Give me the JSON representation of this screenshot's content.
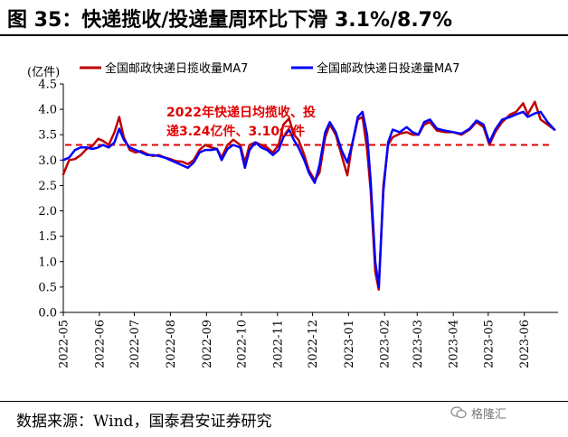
{
  "title": "图 35：快递揽收/投递量周环比下滑 3.1%/8.7%",
  "source": "数据来源：Wind，国泰君安证券研究",
  "watermark": "格隆汇",
  "colors": {
    "series_red": "#c00000",
    "series_blue": "#0000ff",
    "annotation": "#e00000",
    "dashed": "#e00000"
  },
  "chart_data": {
    "type": "line",
    "ylabel": "(亿件)",
    "ylim": [
      0.0,
      4.5
    ],
    "yticks": [
      "0.0",
      "0.5",
      "1.0",
      "1.5",
      "2.0",
      "2.5",
      "3.0",
      "3.5",
      "4.0",
      "4.5"
    ],
    "xtick_labels": [
      "2022-05",
      "2022-06",
      "2022-07",
      "2022-08",
      "2022-09",
      "2022-10",
      "2022-11",
      "2022-12",
      "2023-01",
      "2023-02",
      "2023-03",
      "2023-04",
      "2023-05",
      "2023-06"
    ],
    "x_range": [
      "2022-05-01",
      "2023-06-30"
    ],
    "reference_line": {
      "y": 3.3,
      "style": "dashed"
    },
    "annotation": {
      "line1": "2022年快递日均揽收、投",
      "line2": "递3.24亿件、3.10亿件"
    },
    "legend": [
      "全国邮政快递日揽收量MA7",
      "全国邮政快递日投递量MA7"
    ],
    "series": [
      {
        "name": "全国邮政快递日揽收量MA7",
        "color": "#c00000",
        "points": [
          [
            "2022-05-01",
            2.72
          ],
          [
            "2022-05-06",
            3.0
          ],
          [
            "2022-05-11",
            3.02
          ],
          [
            "2022-05-16",
            3.1
          ],
          [
            "2022-05-21",
            3.22
          ],
          [
            "2022-05-26",
            3.28
          ],
          [
            "2022-05-31",
            3.42
          ],
          [
            "2022-06-04",
            3.38
          ],
          [
            "2022-06-09",
            3.3
          ],
          [
            "2022-06-14",
            3.55
          ],
          [
            "2022-06-18",
            3.85
          ],
          [
            "2022-06-22",
            3.45
          ],
          [
            "2022-06-27",
            3.2
          ],
          [
            "2022-07-02",
            3.15
          ],
          [
            "2022-07-07",
            3.18
          ],
          [
            "2022-07-12",
            3.12
          ],
          [
            "2022-07-17",
            3.08
          ],
          [
            "2022-07-22",
            3.1
          ],
          [
            "2022-07-27",
            3.05
          ],
          [
            "2022-08-01",
            3.02
          ],
          [
            "2022-08-06",
            2.98
          ],
          [
            "2022-08-11",
            2.97
          ],
          [
            "2022-08-16",
            2.92
          ],
          [
            "2022-08-21",
            3.0
          ],
          [
            "2022-08-26",
            3.2
          ],
          [
            "2022-08-31",
            3.3
          ],
          [
            "2022-09-05",
            3.25
          ],
          [
            "2022-09-10",
            3.22
          ],
          [
            "2022-09-14",
            3.05
          ],
          [
            "2022-09-19",
            3.3
          ],
          [
            "2022-09-24",
            3.4
          ],
          [
            "2022-09-30",
            3.3
          ],
          [
            "2022-10-04",
            2.95
          ],
          [
            "2022-10-08",
            3.3
          ],
          [
            "2022-10-13",
            3.35
          ],
          [
            "2022-10-18",
            3.3
          ],
          [
            "2022-10-23",
            3.25
          ],
          [
            "2022-10-28",
            3.15
          ],
          [
            "2022-11-02",
            3.3
          ],
          [
            "2022-11-06",
            3.7
          ],
          [
            "2022-11-11",
            3.82
          ],
          [
            "2022-11-15",
            3.5
          ],
          [
            "2022-11-19",
            3.4
          ],
          [
            "2022-11-24",
            3.1
          ],
          [
            "2022-11-28",
            2.8
          ],
          [
            "2022-12-03",
            2.6
          ],
          [
            "2022-12-07",
            2.75
          ],
          [
            "2022-12-12",
            3.45
          ],
          [
            "2022-12-16",
            3.7
          ],
          [
            "2022-12-21",
            3.5
          ],
          [
            "2022-12-26",
            3.1
          ],
          [
            "2022-12-31",
            2.7
          ],
          [
            "2023-01-04",
            3.3
          ],
          [
            "2023-01-09",
            3.8
          ],
          [
            "2023-01-13",
            3.85
          ],
          [
            "2023-01-17",
            3.2
          ],
          [
            "2023-01-20",
            2.4
          ],
          [
            "2023-01-24",
            0.8
          ],
          [
            "2023-01-27",
            0.45
          ],
          [
            "2023-01-31",
            2.5
          ],
          [
            "2023-02-04",
            3.3
          ],
          [
            "2023-02-08",
            3.45
          ],
          [
            "2023-02-14",
            3.52
          ],
          [
            "2023-02-20",
            3.55
          ],
          [
            "2023-02-25",
            3.5
          ],
          [
            "2023-03-02",
            3.5
          ],
          [
            "2023-03-07",
            3.7
          ],
          [
            "2023-03-12",
            3.75
          ],
          [
            "2023-03-18",
            3.58
          ],
          [
            "2023-03-25",
            3.55
          ],
          [
            "2023-04-01",
            3.55
          ],
          [
            "2023-04-08",
            3.5
          ],
          [
            "2023-04-15",
            3.6
          ],
          [
            "2023-04-21",
            3.75
          ],
          [
            "2023-04-27",
            3.65
          ],
          [
            "2023-05-02",
            3.3
          ],
          [
            "2023-05-07",
            3.55
          ],
          [
            "2023-05-13",
            3.75
          ],
          [
            "2023-05-20",
            3.9
          ],
          [
            "2023-05-25",
            3.95
          ],
          [
            "2023-05-31",
            4.12
          ],
          [
            "2023-06-04",
            3.9
          ],
          [
            "2023-06-10",
            4.15
          ],
          [
            "2023-06-15",
            3.8
          ],
          [
            "2023-06-21",
            3.7
          ],
          [
            "2023-06-27",
            3.6
          ]
        ]
      },
      {
        "name": "全国邮政快递日投递量MA7",
        "color": "#0000ff",
        "points": [
          [
            "2022-05-01",
            3.0
          ],
          [
            "2022-05-06",
            3.05
          ],
          [
            "2022-05-11",
            3.2
          ],
          [
            "2022-05-16",
            3.25
          ],
          [
            "2022-05-21",
            3.25
          ],
          [
            "2022-05-26",
            3.22
          ],
          [
            "2022-05-31",
            3.25
          ],
          [
            "2022-06-04",
            3.3
          ],
          [
            "2022-06-09",
            3.25
          ],
          [
            "2022-06-14",
            3.35
          ],
          [
            "2022-06-18",
            3.62
          ],
          [
            "2022-06-22",
            3.4
          ],
          [
            "2022-06-27",
            3.25
          ],
          [
            "2022-07-02",
            3.2
          ],
          [
            "2022-07-07",
            3.15
          ],
          [
            "2022-07-12",
            3.1
          ],
          [
            "2022-07-17",
            3.1
          ],
          [
            "2022-07-22",
            3.08
          ],
          [
            "2022-07-27",
            3.05
          ],
          [
            "2022-08-01",
            3.0
          ],
          [
            "2022-08-06",
            2.95
          ],
          [
            "2022-08-11",
            2.9
          ],
          [
            "2022-08-16",
            2.85
          ],
          [
            "2022-08-21",
            2.95
          ],
          [
            "2022-08-26",
            3.15
          ],
          [
            "2022-08-31",
            3.2
          ],
          [
            "2022-09-05",
            3.2
          ],
          [
            "2022-09-10",
            3.22
          ],
          [
            "2022-09-14",
            3.0
          ],
          [
            "2022-09-19",
            3.22
          ],
          [
            "2022-09-24",
            3.3
          ],
          [
            "2022-09-30",
            3.25
          ],
          [
            "2022-10-04",
            2.85
          ],
          [
            "2022-10-08",
            3.2
          ],
          [
            "2022-10-13",
            3.35
          ],
          [
            "2022-10-18",
            3.25
          ],
          [
            "2022-10-23",
            3.2
          ],
          [
            "2022-10-28",
            3.1
          ],
          [
            "2022-11-02",
            3.2
          ],
          [
            "2022-11-06",
            3.45
          ],
          [
            "2022-11-11",
            3.6
          ],
          [
            "2022-11-15",
            3.4
          ],
          [
            "2022-11-19",
            3.25
          ],
          [
            "2022-11-24",
            3.0
          ],
          [
            "2022-11-28",
            2.75
          ],
          [
            "2022-12-03",
            2.55
          ],
          [
            "2022-12-07",
            2.9
          ],
          [
            "2022-12-12",
            3.55
          ],
          [
            "2022-12-16",
            3.75
          ],
          [
            "2022-12-21",
            3.55
          ],
          [
            "2022-12-26",
            3.2
          ],
          [
            "2022-12-31",
            2.95
          ],
          [
            "2023-01-04",
            3.3
          ],
          [
            "2023-01-09",
            3.85
          ],
          [
            "2023-01-13",
            3.95
          ],
          [
            "2023-01-17",
            3.5
          ],
          [
            "2023-01-20",
            2.6
          ],
          [
            "2023-01-24",
            1.0
          ],
          [
            "2023-01-27",
            0.5
          ],
          [
            "2023-01-31",
            2.4
          ],
          [
            "2023-02-04",
            3.35
          ],
          [
            "2023-02-08",
            3.6
          ],
          [
            "2023-02-14",
            3.55
          ],
          [
            "2023-02-20",
            3.65
          ],
          [
            "2023-02-25",
            3.55
          ],
          [
            "2023-03-02",
            3.5
          ],
          [
            "2023-03-07",
            3.75
          ],
          [
            "2023-03-12",
            3.8
          ],
          [
            "2023-03-18",
            3.62
          ],
          [
            "2023-03-25",
            3.58
          ],
          [
            "2023-04-01",
            3.55
          ],
          [
            "2023-04-08",
            3.52
          ],
          [
            "2023-04-15",
            3.62
          ],
          [
            "2023-04-21",
            3.78
          ],
          [
            "2023-04-27",
            3.7
          ],
          [
            "2023-05-02",
            3.35
          ],
          [
            "2023-05-07",
            3.6
          ],
          [
            "2023-05-13",
            3.8
          ],
          [
            "2023-05-20",
            3.85
          ],
          [
            "2023-05-25",
            3.9
          ],
          [
            "2023-05-31",
            3.95
          ],
          [
            "2023-06-04",
            3.85
          ],
          [
            "2023-06-10",
            3.92
          ],
          [
            "2023-06-15",
            3.95
          ],
          [
            "2023-06-21",
            3.75
          ],
          [
            "2023-06-27",
            3.6
          ]
        ]
      }
    ]
  }
}
